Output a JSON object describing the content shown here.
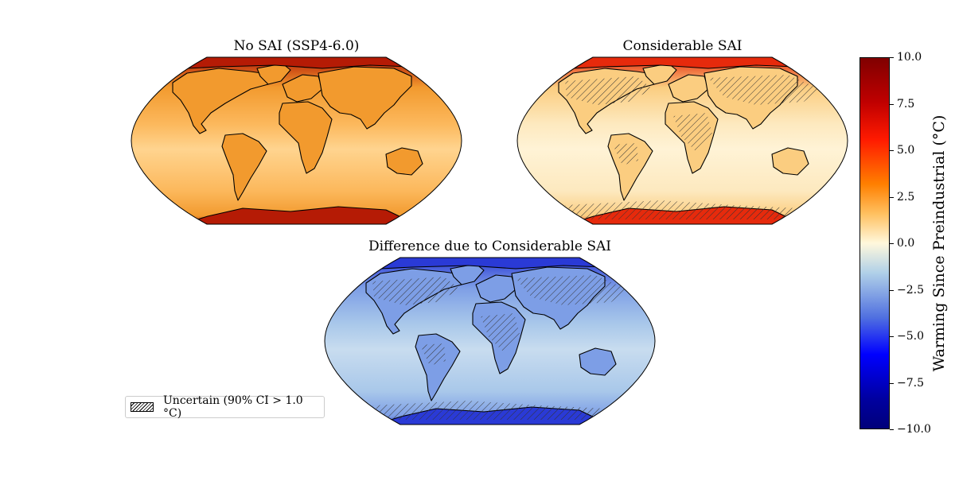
{
  "maps": [
    {
      "title": "No SAI (SSP4-6.0)",
      "scenario": "no-sai",
      "colors": {
        "ocean": "#fcb85c",
        "land": "#f29a2e",
        "pole": "#b51b05",
        "band": "#ffd48f"
      },
      "hatched": false
    },
    {
      "title": "Considerable SAI",
      "scenario": "considerable-sai",
      "colors": {
        "ocean": "#fde9bf",
        "land": "#fbcd80",
        "pole": "#e62a0c",
        "band": "#fff3d6"
      },
      "hatched": true
    },
    {
      "title": "Difference due to Considerable SAI",
      "scenario": "difference",
      "colors": {
        "ocean": "#a9c8ea",
        "land": "#7d9ee6",
        "pole": "#2a3ad6",
        "band": "#c8dcef"
      },
      "hatched": true
    }
  ],
  "colorbar": {
    "label": "Warming Since Preindustrial (°C)",
    "range": [
      -10.0,
      10.0
    ],
    "ticks": [
      "10.0",
      "7.5",
      "5.0",
      "2.5",
      "0.0",
      "−2.5",
      "−5.0",
      "−7.5",
      "−10.0"
    ],
    "tick_values": [
      10.0,
      7.5,
      5.0,
      2.5,
      0.0,
      -2.5,
      -5.0,
      -7.5,
      -10.0
    ]
  },
  "legend": {
    "label": "Uncertain (90% CI > 1.0$^\\circ$C)",
    "display": "Uncertain (90% CI > 1.0 °C)"
  }
}
